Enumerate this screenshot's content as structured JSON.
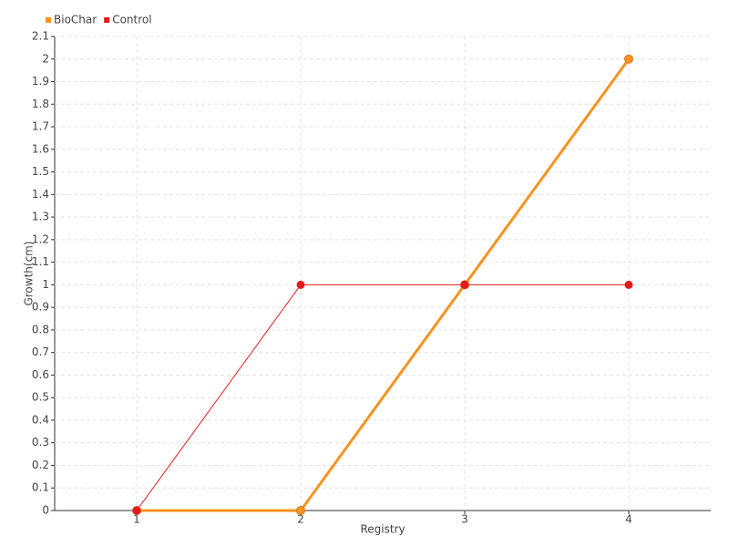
{
  "chart_data": {
    "type": "line",
    "x_label": "Registry",
    "y_label": "Growth(cm)",
    "x": [
      1,
      2,
      3,
      4
    ],
    "series": [
      {
        "name": "BioChar",
        "color": "#f7931e",
        "values": [
          0,
          0,
          1,
          2
        ]
      },
      {
        "name": "Control",
        "color": "#e31a1c",
        "values": [
          0,
          1,
          1,
          1
        ]
      }
    ],
    "xlim": [
      0.5,
      4.5
    ],
    "xticks": [
      1,
      2,
      3,
      4
    ],
    "ylim": [
      0,
      2.1
    ],
    "yticks": [
      0,
      0.1,
      0.2,
      0.3,
      0.4,
      0.5,
      0.6,
      0.7,
      0.8,
      0.9,
      1,
      1.1,
      1.2,
      1.3,
      1.4,
      1.5,
      1.6,
      1.7,
      1.8,
      1.9,
      2,
      2.1
    ],
    "grid": true,
    "legend": "top-left"
  }
}
